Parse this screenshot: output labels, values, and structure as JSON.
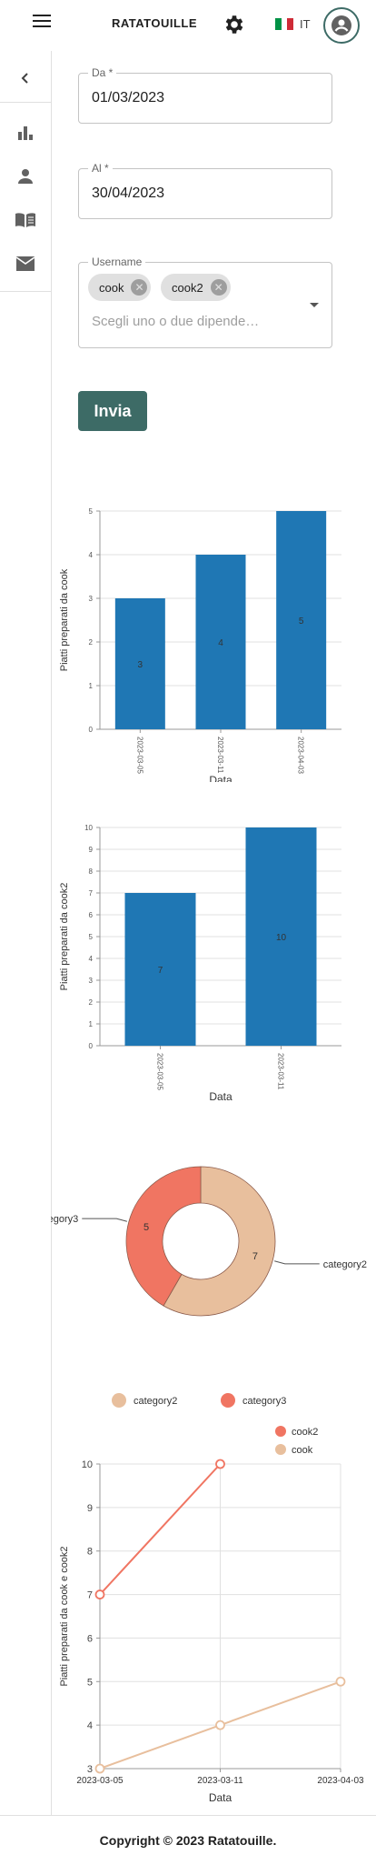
{
  "app": {
    "title": "RATATOUILLE",
    "language": "IT"
  },
  "form": {
    "from_label": "Da *",
    "from_value": "01/03/2023",
    "to_label": "Al *",
    "to_value": "30/04/2023",
    "username_label": "Username",
    "chips": [
      "cook",
      "cook2"
    ],
    "username_placeholder": "Scegli uno o due dipende…",
    "submit_label": "Invia"
  },
  "footer": {
    "copyright": "Copyright © 2023 Ratatouille."
  },
  "icons": {
    "menu": "menu-icon",
    "settings": "gear-icon",
    "flag": "italy-flag-icon",
    "account": "account-circle-icon",
    "collapse": "chevron-left-icon",
    "stats": "bar-chart-icon",
    "users": "person-icon",
    "menu_book": "book-icon",
    "messages": "mail-icon"
  },
  "colors": {
    "accent": "#3d6b66",
    "bar": "#1f77b4",
    "category2": "#e8bf9d",
    "category3": "#f07562"
  },
  "chart_data": [
    {
      "type": "bar",
      "categories": [
        "2023-03-05",
        "2023-03-11",
        "2023-04-03"
      ],
      "values": [
        3,
        4,
        5
      ],
      "xlabel": "Data",
      "ylabel": "Piatti preparati da cook",
      "ylim": [
        0,
        5
      ],
      "yticks": [
        "0",
        "1",
        "2",
        "3",
        "4",
        "5"
      ],
      "grid": true
    },
    {
      "type": "bar",
      "categories": [
        "2023-03-05",
        "2023-03-11"
      ],
      "values": [
        7,
        10
      ],
      "xlabel": "Data",
      "ylabel": "Piatti preparati da cook2",
      "ylim": [
        0,
        10
      ],
      "yticks": [
        "0",
        "1",
        "2",
        "3",
        "4",
        "5",
        "6",
        "7",
        "8",
        "9",
        "10"
      ],
      "grid": true
    },
    {
      "type": "pie",
      "donut": true,
      "slices": [
        {
          "name": "category2",
          "value": 7,
          "color": "#e8bf9d"
        },
        {
          "name": "category3",
          "value": 5,
          "color": "#f07562"
        }
      ],
      "legend": [
        "category2",
        "category3"
      ],
      "legend_position": "bottom"
    },
    {
      "type": "line",
      "x": [
        "2023-03-05",
        "2023-03-11",
        "2023-04-03"
      ],
      "series": [
        {
          "name": "cook2",
          "color": "#f07562",
          "points": [
            [
              "2023-03-05",
              7
            ],
            [
              "2023-03-11",
              10
            ]
          ]
        },
        {
          "name": "cook",
          "color": "#e8bf9d",
          "points": [
            [
              "2023-03-05",
              3
            ],
            [
              "2023-03-11",
              4
            ],
            [
              "2023-04-03",
              5
            ]
          ]
        }
      ],
      "xlabel": "Data",
      "ylabel": "Piatti preparati da cook e cook2",
      "ylim": [
        3,
        10
      ],
      "yticks": [
        "3",
        "4",
        "5",
        "6",
        "7",
        "8",
        "9",
        "10"
      ],
      "legend_position": "top-right",
      "grid": true
    }
  ]
}
